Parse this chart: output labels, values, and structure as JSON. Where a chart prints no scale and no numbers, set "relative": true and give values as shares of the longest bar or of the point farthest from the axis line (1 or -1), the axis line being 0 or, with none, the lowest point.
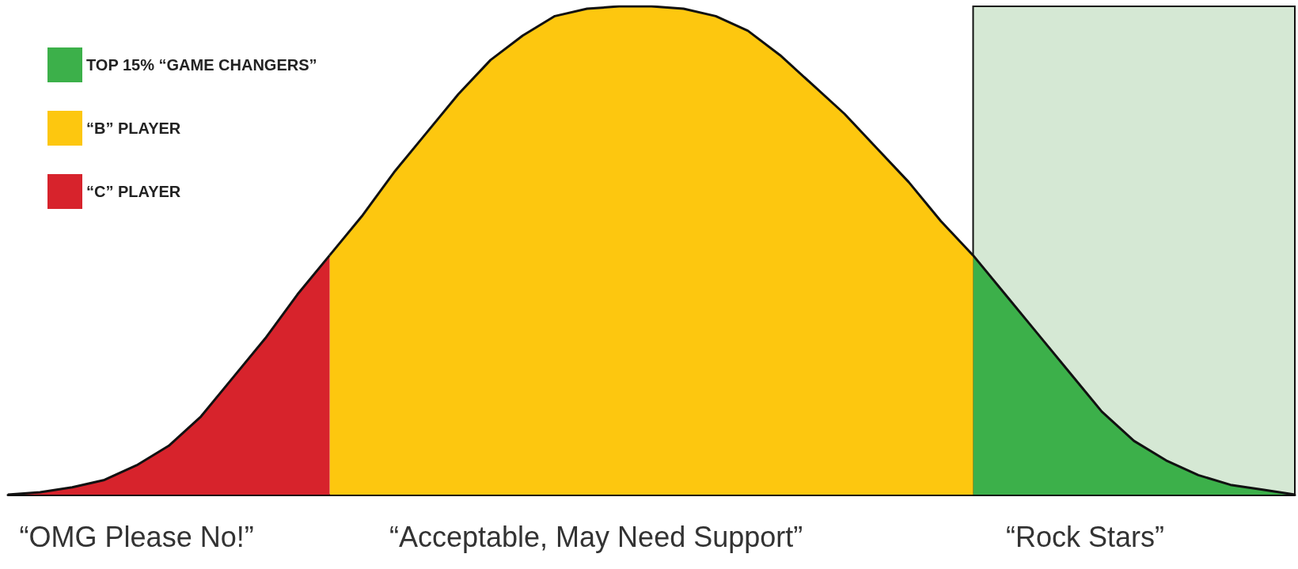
{
  "chart_data": {
    "type": "area",
    "relative": true,
    "categories": [
      null,
      null,
      null,
      null,
      null,
      null,
      null,
      null,
      null,
      null,
      null,
      null,
      null,
      null,
      null,
      null,
      null,
      null,
      null,
      null,
      null,
      null,
      null,
      null,
      null,
      null,
      null,
      null,
      null,
      null,
      null,
      null,
      null,
      null,
      null,
      null,
      null,
      null,
      null,
      null,
      null
    ],
    "series": [
      {
        "name": "TOP 15% “GAME CHANGERS”",
        "color": "#3cb04a",
        "values": [
          null,
          null,
          null,
          null,
          null,
          null,
          null,
          null,
          null,
          null,
          null,
          null,
          null,
          null,
          null,
          null,
          null,
          null,
          null,
          null,
          null,
          null,
          null,
          null,
          null,
          null,
          null,
          null,
          null,
          null,
          0.49,
          0.41,
          0.33,
          0.25,
          0.17,
          0.11,
          0.07,
          0.04,
          0.02,
          0.01,
          0
        ]
      },
      {
        "name": "“B” PLAYER",
        "color": "#fdc70f",
        "values": [
          null,
          null,
          null,
          null,
          null,
          null,
          null,
          null,
          null,
          null,
          0.49,
          0.57,
          0.66,
          0.74,
          0.82,
          0.89,
          0.94,
          0.98,
          0.995,
          1,
          1,
          0.995,
          0.98,
          0.95,
          0.9,
          0.84,
          0.78,
          0.71,
          0.64,
          0.56,
          0.49,
          null,
          null,
          null,
          null,
          null,
          null,
          null,
          null,
          null,
          null
        ]
      },
      {
        "name": "“C” PLAYER",
        "color": "#d7232c",
        "values": [
          0,
          0.005,
          0.015,
          0.03,
          0.06,
          0.1,
          0.16,
          0.24,
          0.32,
          0.41,
          0.49,
          null,
          null,
          null,
          null,
          null,
          null,
          null,
          null,
          null,
          null,
          null,
          null,
          null,
          null,
          null,
          null,
          null,
          null,
          null,
          null,
          null,
          null,
          null,
          null,
          null,
          null,
          null,
          null,
          null,
          null
        ]
      }
    ],
    "annotations": [
      "“OMG Please No!”",
      "“Acceptable, May Need Support”",
      "“Rock Stars”"
    ],
    "legend": "top left",
    "grid": false
  }
}
